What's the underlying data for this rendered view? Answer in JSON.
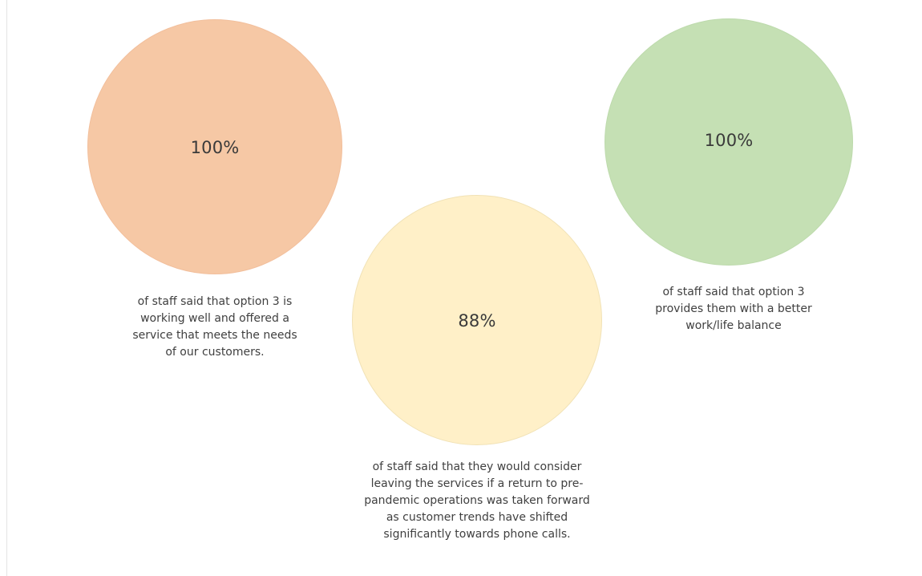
{
  "stats": [
    {
      "value": "100%",
      "color": "#f6c8a5",
      "caption_lines": [
        "of staff said that option 3 is",
        "working well and offered a",
        "service that meets the needs",
        "of our customers."
      ]
    },
    {
      "value": "88%",
      "color": "#fff0c8",
      "caption_lines": [
        "of staff said that they would consider",
        "leaving the services if a return to pre-",
        "pandemic operations was taken forward",
        "as customer trends have shifted",
        "significantly towards phone calls."
      ]
    },
    {
      "value": "100%",
      "color": "#c5e0b4",
      "caption_lines": [
        "of staff said that option 3",
        "provides them with a better",
        "work/life balance"
      ]
    }
  ]
}
